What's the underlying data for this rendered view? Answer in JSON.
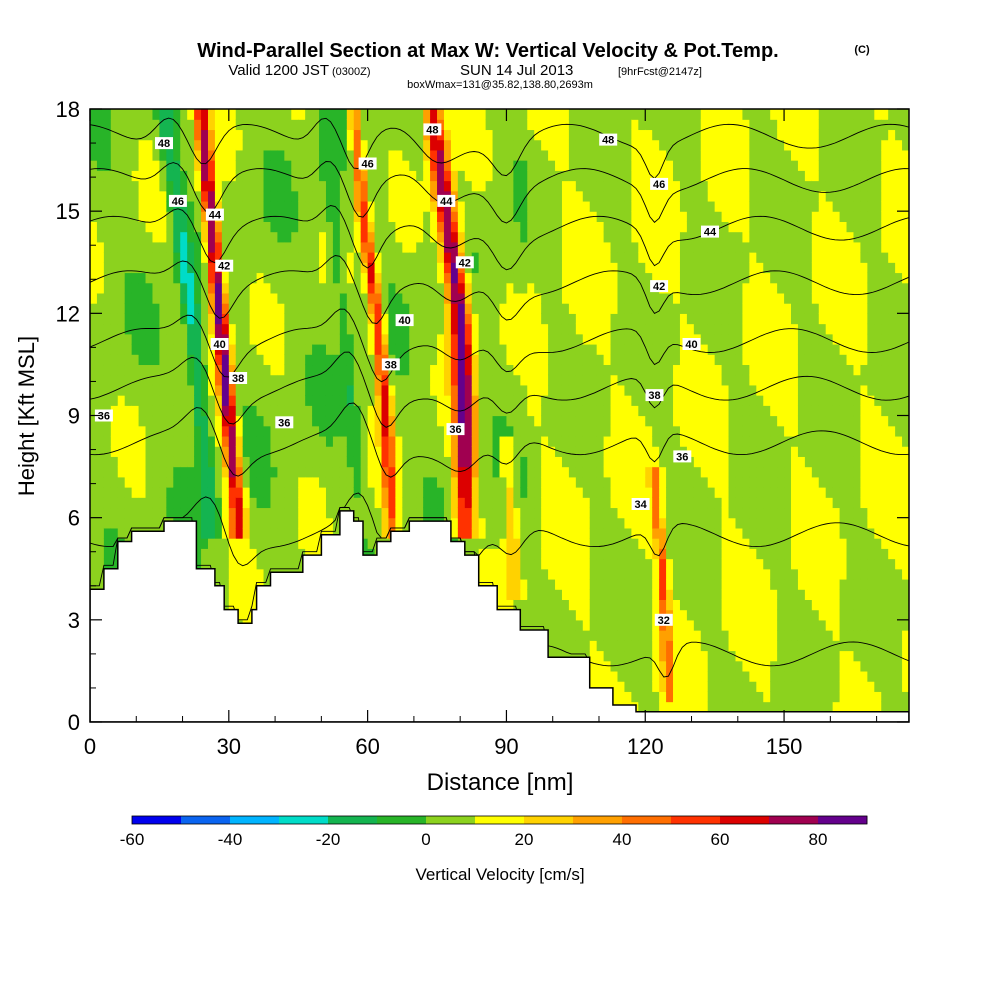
{
  "chart_data": {
    "type": "heatmap",
    "title": "Wind-Parallel Section at Max W: Vertical Velocity & Pot.Temp.",
    "title_mark": "(C)",
    "subtitle": {
      "valid": "Valid 1200 JST",
      "utc": "(0300Z)",
      "date": "SUN 14 Jul 2013",
      "fcst": "[9hrFcst@2147z]",
      "box": "boxWmax=131@35.82,138.80,2693m"
    },
    "xlabel": "Distance [nm]",
    "ylabel": "Height [Kft MSL]",
    "xlim": [
      0,
      177
    ],
    "ylim": [
      0,
      18
    ],
    "x_ticks": [
      0,
      30,
      60,
      90,
      120,
      150
    ],
    "y_ticks": [
      0,
      3,
      6,
      9,
      12,
      15,
      18
    ],
    "colorbar": {
      "label": "Vertical Velocity [cm/s]",
      "range": [
        -60,
        90
      ],
      "step": 10,
      "tick_values": [
        -60,
        -40,
        -20,
        0,
        20,
        40,
        60,
        80
      ],
      "colors": [
        "#0000ee",
        "#0a64f0",
        "#00b4ff",
        "#00dcc8",
        "#14b450",
        "#28b428",
        "#8cd21e",
        "#ffff00",
        "#ffd200",
        "#ffa000",
        "#ff6e00",
        "#ff3200",
        "#dc0000",
        "#a00050",
        "#64008c"
      ]
    },
    "terrain_profile": {
      "x": [
        0,
        3,
        3,
        6,
        6,
        9,
        9,
        16,
        16,
        23,
        23,
        27,
        27,
        29,
        29,
        32,
        32,
        35,
        35,
        36,
        36,
        39,
        39,
        46,
        46,
        50,
        50,
        54,
        54,
        57,
        57,
        59,
        59,
        62,
        62,
        65,
        65,
        69,
        69,
        78,
        78,
        81,
        81,
        84,
        84,
        88,
        88,
        93,
        93,
        99,
        99,
        108,
        108,
        113,
        113,
        118,
        118,
        177
      ],
      "height": [
        3.9,
        3.9,
        4.5,
        4.5,
        5.3,
        5.3,
        5.6,
        5.6,
        5.9,
        5.9,
        4.5,
        4.5,
        4.0,
        4.0,
        3.3,
        3.3,
        2.9,
        2.9,
        3.3,
        3.3,
        4.0,
        4.0,
        4.4,
        4.4,
        4.9,
        4.9,
        5.5,
        5.5,
        6.2,
        6.2,
        5.9,
        5.9,
        4.9,
        4.9,
        5.3,
        5.3,
        5.6,
        5.6,
        5.9,
        5.9,
        5.3,
        5.3,
        4.9,
        4.9,
        4.0,
        4.0,
        3.3,
        3.3,
        2.7,
        2.7,
        1.9,
        1.9,
        1.0,
        1.0,
        0.5,
        0.5,
        0.3,
        0.3
      ]
    },
    "w_features": [
      {
        "x": [
          24,
          26,
          28,
          30,
          32
        ],
        "z": [
          18,
          15,
          12,
          9,
          6
        ],
        "peak": 85,
        "width": 1.6
      },
      {
        "x": [
          57,
          59,
          62,
          64,
          65
        ],
        "z": [
          18,
          15,
          12,
          9,
          6
        ],
        "peak": 60,
        "width": 1.4
      },
      {
        "x": [
          74,
          77,
          80,
          81,
          81
        ],
        "z": [
          18,
          15,
          12,
          9,
          6
        ],
        "peak": 85,
        "width": 2.2
      },
      {
        "x": [
          122,
          124,
          125
        ],
        "z": [
          7,
          4,
          1
        ],
        "peak": 45,
        "width": 1.0
      },
      {
        "x": [
          90,
          92
        ],
        "z": [
          8,
          4
        ],
        "peak": 25,
        "width": 1.5
      },
      {
        "x": [
          16,
          22,
          26
        ],
        "z": [
          18,
          12,
          6
        ],
        "peak": -30,
        "width": 1.8
      },
      {
        "x": [
          50,
          56,
          58
        ],
        "z": [
          18,
          10,
          7
        ],
        "peak": -15,
        "width": 1.5
      }
    ],
    "theta_contours": [
      {
        "value": 32,
        "labels": [
          {
            "x": 124,
            "z": 3.0
          }
        ]
      },
      {
        "value": 34,
        "labels": [
          {
            "x": 119,
            "z": 6.4
          }
        ]
      },
      {
        "value": 36,
        "labels": [
          {
            "x": 3,
            "z": 9.0
          },
          {
            "x": 42,
            "z": 8.8
          },
          {
            "x": 79,
            "z": 8.6
          },
          {
            "x": 128,
            "z": 7.8
          }
        ]
      },
      {
        "value": 38,
        "labels": [
          {
            "x": 32,
            "z": 10.1
          },
          {
            "x": 65,
            "z": 10.5
          },
          {
            "x": 122,
            "z": 9.6
          }
        ]
      },
      {
        "value": 40,
        "labels": [
          {
            "x": 28,
            "z": 11.1
          },
          {
            "x": 68,
            "z": 11.8
          },
          {
            "x": 130,
            "z": 11.1
          }
        ]
      },
      {
        "value": 42,
        "labels": [
          {
            "x": 29,
            "z": 13.4
          },
          {
            "x": 81,
            "z": 13.5
          },
          {
            "x": 123,
            "z": 12.8
          }
        ]
      },
      {
        "value": 44,
        "labels": [
          {
            "x": 27,
            "z": 14.9
          },
          {
            "x": 77,
            "z": 15.3
          },
          {
            "x": 134,
            "z": 14.4
          }
        ]
      },
      {
        "value": 46,
        "labels": [
          {
            "x": 19,
            "z": 15.3
          },
          {
            "x": 60,
            "z": 16.4
          },
          {
            "x": 123,
            "z": 15.8
          }
        ]
      },
      {
        "value": 48,
        "labels": [
          {
            "x": 16,
            "z": 17.0
          },
          {
            "x": 74,
            "z": 17.4
          },
          {
            "x": 112,
            "z": 17.1
          }
        ]
      }
    ],
    "grid": false
  }
}
